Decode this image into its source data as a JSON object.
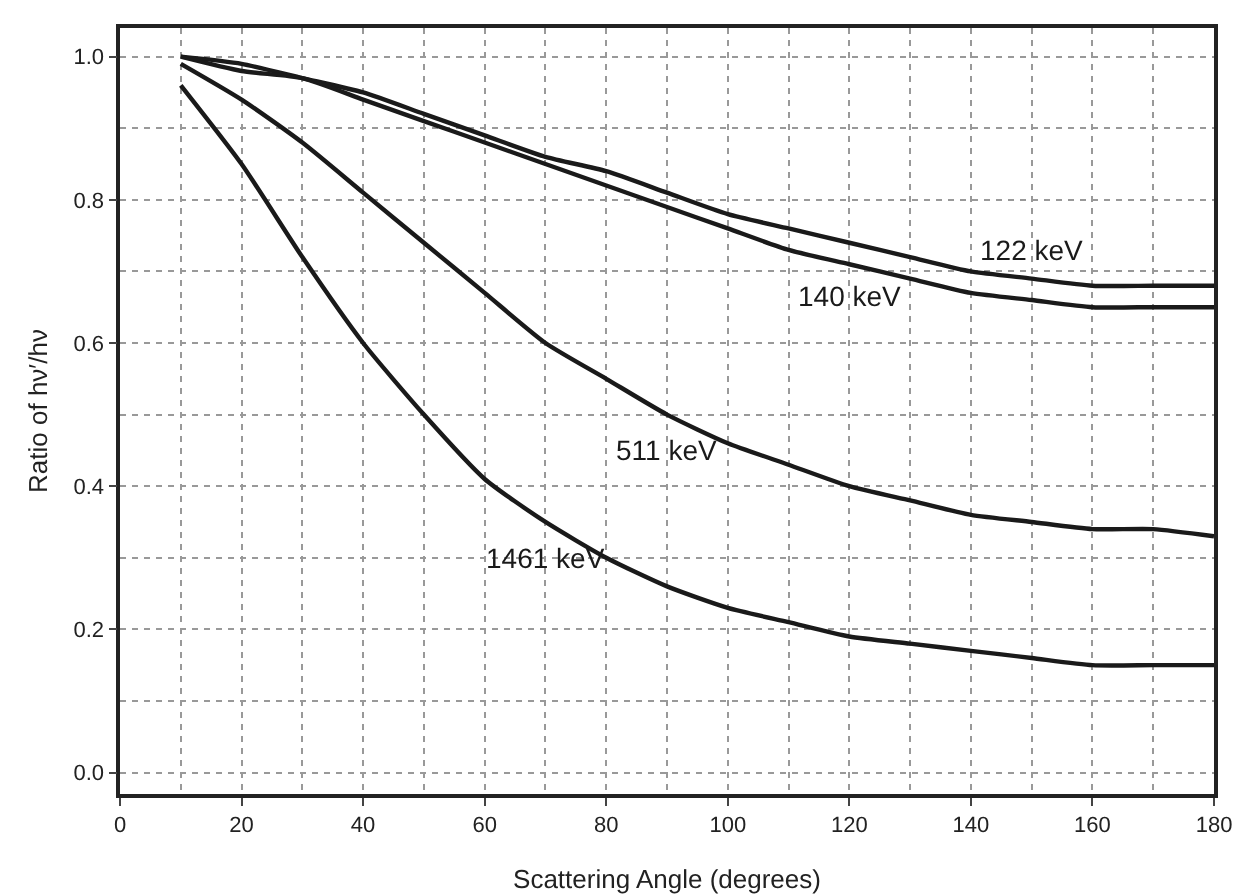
{
  "chart_data": {
    "type": "line",
    "xlabel": "Scattering Angle (degrees)",
    "ylabel": "Ratio of hν′/hν",
    "x": [
      10,
      20,
      30,
      40,
      50,
      60,
      70,
      80,
      90,
      100,
      110,
      120,
      130,
      140,
      150,
      160,
      170,
      180
    ],
    "series": [
      {
        "name": "122 keV",
        "color": "#1a1a1a",
        "values": [
          1.0,
          0.99,
          0.97,
          0.95,
          0.92,
          0.89,
          0.86,
          0.84,
          0.81,
          0.78,
          0.76,
          0.74,
          0.72,
          0.7,
          0.69,
          0.68,
          0.68,
          0.68
        ]
      },
      {
        "name": "140 keV",
        "color": "#1a1a1a",
        "values": [
          1.0,
          0.98,
          0.97,
          0.94,
          0.91,
          0.88,
          0.85,
          0.82,
          0.79,
          0.76,
          0.73,
          0.71,
          0.69,
          0.67,
          0.66,
          0.65,
          0.65,
          0.65
        ]
      },
      {
        "name": "511 keV",
        "color": "#1a1a1a",
        "values": [
          0.99,
          0.94,
          0.88,
          0.81,
          0.74,
          0.67,
          0.6,
          0.55,
          0.5,
          0.46,
          0.43,
          0.4,
          0.38,
          0.36,
          0.35,
          0.34,
          0.34,
          0.33
        ]
      },
      {
        "name": "1461 keV",
        "color": "#1a1a1a",
        "values": [
          0.96,
          0.85,
          0.72,
          0.6,
          0.5,
          0.41,
          0.35,
          0.3,
          0.26,
          0.23,
          0.21,
          0.19,
          0.18,
          0.17,
          0.16,
          0.15,
          0.15,
          0.15
        ]
      }
    ],
    "xlim": [
      0,
      180
    ],
    "xticks": [
      0,
      20,
      40,
      60,
      80,
      100,
      120,
      140,
      160,
      180
    ],
    "ylim": [
      -0.03,
      1.04
    ],
    "yticks": [
      {
        "value": 0,
        "label": "0.0"
      },
      0.2,
      0.4,
      0.6,
      0.8,
      {
        "value": 1,
        "label": "1.0"
      }
    ],
    "grid": true,
    "legend": false,
    "line_style": "solid",
    "marker": "none"
  }
}
